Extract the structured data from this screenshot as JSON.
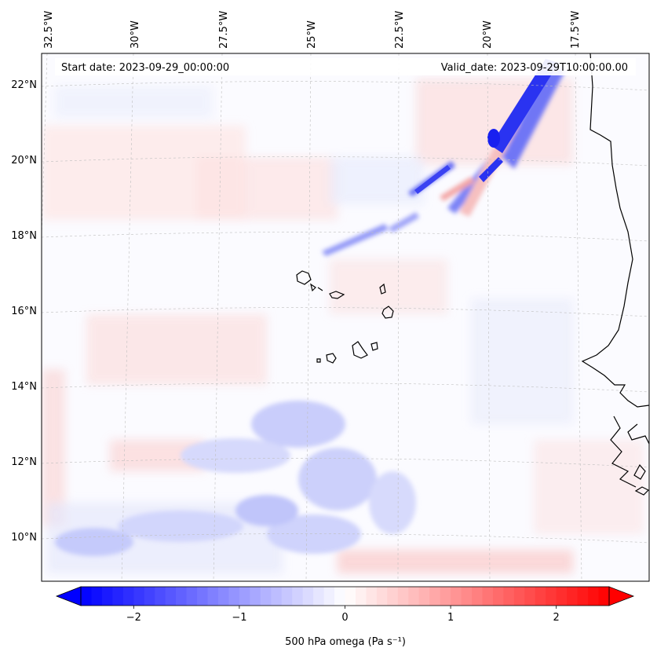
{
  "header": {
    "start_date": "Start date: 2023-09-29_00:00:00",
    "valid_date": "Valid_date: 2023-09-29T10:00:00.00"
  },
  "map": {
    "lon_labels": [
      "32.5°W",
      "30°W",
      "27.5°W",
      "25°W",
      "22.5°W",
      "20°W",
      "17.5°W"
    ],
    "lat_labels": [
      "22°N",
      "20°N",
      "18°N",
      "16°N",
      "14°N",
      "12°N",
      "10°N"
    ],
    "lon_values": [
      -32.5,
      -30,
      -27.5,
      -25,
      -22.5,
      -20,
      -17.5
    ],
    "lat_values": [
      22,
      20,
      18,
      16,
      14,
      12,
      10
    ],
    "lon_range": [
      -33.1,
      -15.2
    ],
    "lat_range": [
      8.9,
      22.8
    ],
    "gridlines": true,
    "colormap": "bwr"
  },
  "colorbar": {
    "label": "500 hPa omega (Pa s⁻¹)",
    "tick_labels": [
      "−2",
      "−1",
      "0",
      "1",
      "2"
    ],
    "ticks": [
      -2,
      -1,
      0,
      1,
      2
    ],
    "range": [
      -2.5,
      2.5
    ],
    "extend": "both",
    "low_color": "#0000ff",
    "mid_color": "#ffffff",
    "high_color": "#ff0000"
  }
}
